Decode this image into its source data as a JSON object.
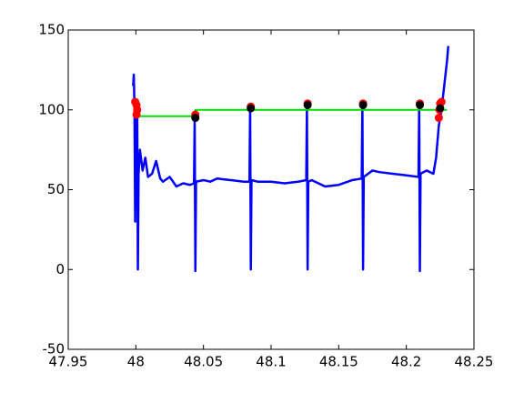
{
  "chart_data": {
    "type": "line",
    "xlim": [
      47.95,
      48.25
    ],
    "ylim": [
      -50,
      150
    ],
    "xticks": [
      47.95,
      48,
      48.05,
      48.1,
      48.15,
      48.2,
      48.25
    ],
    "yticks": [
      -50,
      0,
      50,
      100,
      150
    ],
    "series": [
      {
        "color": "#0000ff",
        "style": "line",
        "x": [
          47.998,
          47.9985,
          47.999,
          47.9995,
          48.0,
          48.001,
          48.0015,
          48.002,
          48.003,
          48.005,
          48.007,
          48.009,
          48.012,
          48.015,
          48.018,
          48.02,
          48.025,
          48.03,
          48.035,
          48.04,
          48.043,
          48.0435,
          48.044,
          48.0445,
          48.05,
          48.055,
          48.06,
          48.07,
          48.08,
          48.084,
          48.0845,
          48.085,
          48.0855,
          48.09,
          48.1,
          48.11,
          48.12,
          48.126,
          48.1265,
          48.127,
          48.1275,
          48.13,
          48.14,
          48.15,
          48.16,
          48.167,
          48.1675,
          48.168,
          48.1685,
          48.175,
          48.18,
          48.19,
          48.2,
          48.209,
          48.2095,
          48.21,
          48.2105,
          48.215,
          48.22,
          48.222,
          48.224,
          48.226,
          48.228,
          48.23,
          48.231
        ],
        "values": [
          115,
          122,
          100,
          30,
          80,
          100,
          0,
          60,
          75,
          62,
          70,
          58,
          60,
          68,
          57,
          55,
          58,
          52,
          54,
          53,
          54,
          95,
          -1,
          55,
          56,
          55,
          57,
          56,
          55,
          55,
          102,
          0,
          56,
          55,
          55,
          54,
          55,
          56,
          103,
          0,
          55,
          56,
          52,
          53,
          56,
          57,
          103,
          0,
          58,
          62,
          61,
          60,
          59,
          58,
          103,
          -1,
          60,
          62,
          60,
          70,
          90,
          100,
          115,
          130,
          140
        ]
      },
      {
        "color": "#00dd00",
        "style": "line",
        "x": [
          47.998,
          48.043,
          48.044,
          48.23
        ],
        "values": [
          96,
          96,
          100,
          100
        ]
      },
      {
        "color": "#ff0000",
        "style": "markers",
        "x": [
          47.9995,
          48.0005,
          48.001,
          48.0005,
          48.044,
          48.085,
          48.127,
          48.168,
          48.21,
          48.224,
          48.2245,
          48.225,
          48.226
        ],
        "values": [
          105,
          103,
          100,
          97,
          97,
          102,
          104,
          104,
          104,
          95,
          100,
          104,
          105
        ]
      },
      {
        "color": "#000000",
        "style": "markers",
        "x": [
          48.044,
          48.085,
          48.127,
          48.168,
          48.21,
          48.225
        ],
        "values": [
          95,
          101,
          103,
          103,
          103,
          101
        ]
      }
    ]
  }
}
